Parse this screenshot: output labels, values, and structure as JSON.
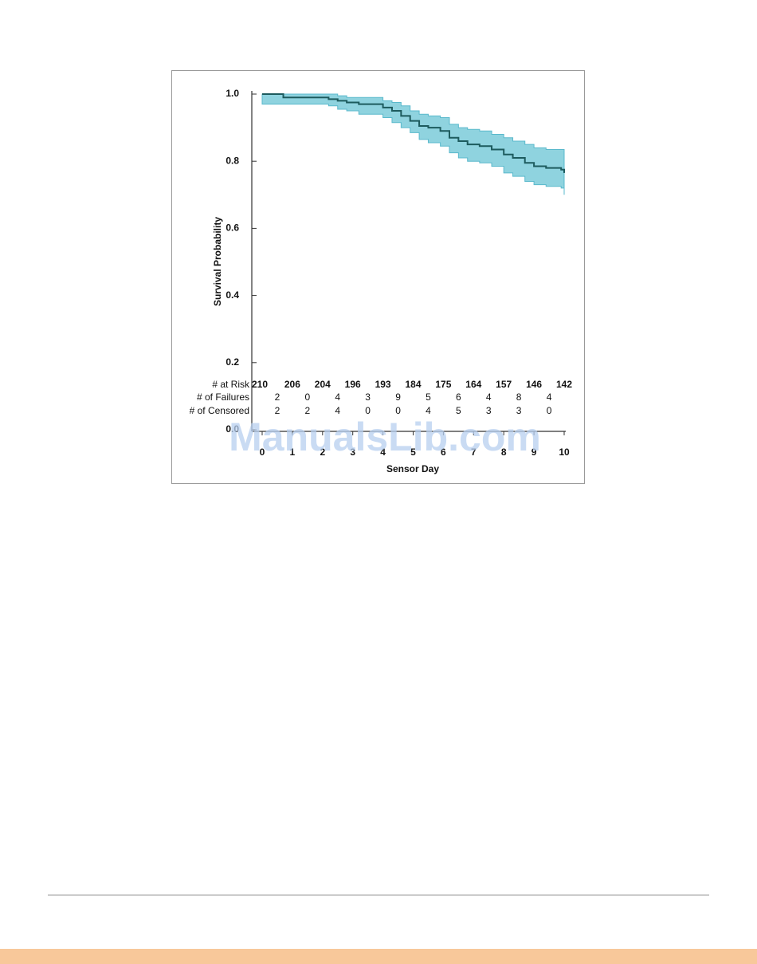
{
  "chart_data": {
    "type": "survival",
    "xlabel": "Sensor Day",
    "ylabel": "Survival Probability",
    "x": [
      0,
      0.7,
      1.5,
      2.2,
      2.5,
      2.8,
      3.2,
      3.6,
      4.0,
      4.3,
      4.6,
      4.9,
      5.2,
      5.5,
      5.9,
      6.2,
      6.5,
      6.8,
      7.2,
      7.6,
      8.0,
      8.3,
      8.7,
      9.0,
      9.4,
      9.9,
      10
    ],
    "values": [
      1.0,
      0.99,
      0.99,
      0.985,
      0.98,
      0.975,
      0.97,
      0.97,
      0.96,
      0.95,
      0.935,
      0.92,
      0.905,
      0.9,
      0.89,
      0.87,
      0.86,
      0.85,
      0.845,
      0.835,
      0.82,
      0.81,
      0.795,
      0.785,
      0.78,
      0.775,
      0.765
    ],
    "upper": [
      1.0,
      1.0,
      1.0,
      1.0,
      0.995,
      0.99,
      0.99,
      0.99,
      0.98,
      0.975,
      0.965,
      0.95,
      0.94,
      0.935,
      0.93,
      0.91,
      0.9,
      0.895,
      0.89,
      0.88,
      0.87,
      0.86,
      0.85,
      0.84,
      0.835,
      0.835,
      0.83
    ],
    "lower": [
      0.97,
      0.97,
      0.97,
      0.965,
      0.955,
      0.95,
      0.94,
      0.94,
      0.93,
      0.915,
      0.9,
      0.885,
      0.865,
      0.855,
      0.845,
      0.825,
      0.81,
      0.8,
      0.795,
      0.785,
      0.765,
      0.755,
      0.74,
      0.73,
      0.725,
      0.72,
      0.7
    ],
    "color": "#1d5b5e",
    "band_color": "#8fd3df",
    "xlim": [
      0,
      10
    ],
    "xticks": [
      0,
      1,
      2,
      3,
      4,
      5,
      6,
      7,
      8,
      9,
      10
    ],
    "ylim": [
      0,
      1
    ],
    "yticks": [
      {
        "value": 0,
        "label": "0.0"
      },
      0.2,
      0.4,
      0.6,
      0.8,
      {
        "value": 1,
        "label": "1.0"
      }
    ],
    "risk_table": {
      "at_risk": {
        "label": "# at Risk",
        "values": [
          210,
          206,
          204,
          196,
          193,
          184,
          175,
          164,
          157,
          146,
          142
        ]
      },
      "failures": {
        "label": "# of Failures",
        "values": [
          2,
          0,
          4,
          3,
          9,
          5,
          6,
          4,
          8,
          4
        ]
      },
      "censored": {
        "label": "# of Censored",
        "values": [
          2,
          2,
          4,
          0,
          0,
          4,
          5,
          3,
          3,
          0
        ]
      }
    }
  },
  "watermark": "ManualsLib.com"
}
